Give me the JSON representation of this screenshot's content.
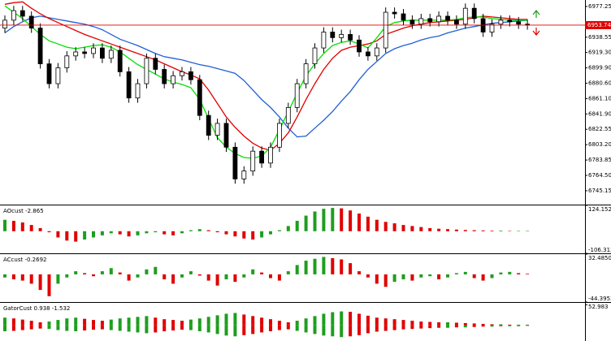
{
  "chart_data": [
    {
      "type": "candlestick",
      "open": [
        6950,
        6960,
        6972,
        6965,
        6950,
        6905,
        6880,
        6900,
        6915,
        6920,
        6918,
        6925,
        6912,
        6922,
        6895,
        6862,
        6880,
        6912,
        6898,
        6880,
        6890,
        6895,
        6885,
        6840,
        6815,
        6830,
        6800,
        6760,
        6770,
        6795,
        6780,
        6800,
        6830,
        6850,
        6880,
        6905,
        6925,
        6945,
        6938,
        6942,
        6935,
        6920,
        6915,
        6925,
        6970,
        6968,
        6960,
        6955,
        6962,
        6958,
        6965,
        6960,
        6955,
        6975,
        6962,
        6945,
        6955,
        6960,
        6958,
        6955
      ],
      "high": [
        6966,
        6978,
        6978,
        6971,
        6956,
        6911,
        6906,
        6921,
        6926,
        6926,
        6931,
        6931,
        6928,
        6928,
        6901,
        6886,
        6918,
        6918,
        6904,
        6896,
        6901,
        6901,
        6891,
        6846,
        6836,
        6836,
        6806,
        6776,
        6801,
        6801,
        6806,
        6836,
        6856,
        6886,
        6911,
        6931,
        6951,
        6951,
        6948,
        6948,
        6941,
        6926,
        6931,
        6976,
        6976,
        6974,
        6966,
        6968,
        6968,
        6971,
        6971,
        6966,
        6981,
        6981,
        6968,
        6961,
        6966,
        6966,
        6964,
        6961
      ],
      "low": [
        6944,
        6954,
        6959,
        6944,
        6899,
        6874,
        6874,
        6894,
        6909,
        6912,
        6912,
        6906,
        6906,
        6889,
        6856,
        6856,
        6874,
        6892,
        6874,
        6874,
        6884,
        6879,
        6834,
        6809,
        6809,
        6794,
        6754,
        6754,
        6764,
        6774,
        6774,
        6794,
        6824,
        6844,
        6874,
        6899,
        6919,
        6932,
        6932,
        6929,
        6914,
        6909,
        6909,
        6919,
        6962,
        6954,
        6949,
        6949,
        6952,
        6952,
        6954,
        6949,
        6949,
        6956,
        6939,
        6939,
        6949,
        6952,
        6949,
        6948
      ],
      "close": [
        6960,
        6972,
        6965,
        6950,
        6905,
        6880,
        6900,
        6915,
        6920,
        6918,
        6925,
        6912,
        6922,
        6895,
        6862,
        6880,
        6912,
        6898,
        6880,
        6890,
        6895,
        6885,
        6840,
        6815,
        6830,
        6800,
        6760,
        6770,
        6795,
        6780,
        6800,
        6830,
        6850,
        6880,
        6905,
        6925,
        6945,
        6938,
        6942,
        6935,
        6920,
        6915,
        6925,
        6970,
        6968,
        6960,
        6955,
        6962,
        6958,
        6965,
        6960,
        6955,
        6975,
        6962,
        6945,
        6955,
        6960,
        6958,
        6955,
        6954
      ],
      "lines": [
        {
          "color": "#1f5fd6",
          "values": [
            6944,
            6952,
            6958,
            6963,
            6965,
            6963,
            6961,
            6959,
            6957,
            6955,
            6952,
            6948,
            6942,
            6936,
            6932,
            6928,
            6923,
            6918,
            6914,
            6912,
            6910,
            6907,
            6904,
            6902,
            6899,
            6896,
            6893,
            6884,
            6872,
            6860,
            6850,
            6838,
            6824,
            6813,
            6814,
            6824,
            6834,
            6845,
            6858,
            6870,
            6885,
            6898,
            6908,
            6918,
            6924,
            6928,
            6931,
            6935,
            6938,
            6940,
            6944,
            6947,
            6950,
            6952,
            6954,
            6956,
            6957,
            6958,
            6959,
            6960
          ]
        },
        {
          "color": "#e00000",
          "values": [
            6980,
            6982,
            6983,
            6975,
            6968,
            6962,
            6957,
            6952,
            6947,
            6942,
            6938,
            6934,
            6930,
            6926,
            6922,
            6918,
            6914,
            6910,
            6905,
            6900,
            6895,
            6891,
            6886,
            6872,
            6855,
            6838,
            6825,
            6814,
            6805,
            6799,
            6796,
            6805,
            6818,
            6838,
            6860,
            6880,
            6898,
            6912,
            6922,
            6926,
            6928,
            6930,
            6934,
            6942,
            6946,
            6950,
            6953,
            6955,
            6957,
            6958,
            6959,
            6960,
            6961,
            6963,
            6965,
            6964,
            6963,
            6962,
            6961,
            6961
          ]
        },
        {
          "color": "#00e000",
          "values": [
            6978,
            6970,
            6962,
            6952,
            6942,
            6934,
            6930,
            6926,
            6924,
            6926,
            6928,
            6929,
            6926,
            6920,
            6912,
            6904,
            6898,
            6892,
            6886,
            6882,
            6879,
            6875,
            6860,
            6836,
            6812,
            6800,
            6792,
            6787,
            6786,
            6789,
            6800,
            6822,
            6845,
            6868,
            6890,
            6905,
            6918,
            6928,
            6932,
            6934,
            6930,
            6925,
            6938,
            6952,
            6957,
            6959,
            6960,
            6960,
            6960,
            6960,
            6960,
            6961,
            6963,
            6964,
            6964,
            6962,
            6961,
            6960,
            6960,
            6960
          ]
        }
      ],
      "current_price": 6953.74,
      "current_color": "#e00000",
      "ylim": [
        6727.7,
        6985.4
      ],
      "yticks": [
        6977.25,
        {
          "value": 6938.55,
          "label": "6938.55"
        },
        {
          "value": 6919.3,
          "label": "6919.30"
        },
        {
          "value": 6899.9,
          "label": "6899.90"
        },
        {
          "value": 6880.6,
          "label": "6880.60"
        },
        {
          "value": 6861.1,
          "label": "6861.10"
        },
        {
          "value": 6841.9,
          "label": "6841.90"
        },
        6822.55,
        {
          "value": 6803.2,
          "label": "6803.20"
        },
        6783.85,
        {
          "value": 6764.5,
          "label": "6764.50"
        },
        6745.15
      ]
    },
    {
      "type": "bar",
      "title": "AOcust -2.865",
      "up_color": "#1e9e1e",
      "down_color": "#e00000",
      "values": [
        55,
        50,
        42,
        30,
        15,
        -5,
        -30,
        -45,
        -50,
        -40,
        -30,
        -20,
        -10,
        -15,
        -25,
        -20,
        -10,
        -5,
        -15,
        -20,
        -10,
        5,
        10,
        5,
        -5,
        -15,
        -25,
        -35,
        -40,
        -30,
        -15,
        5,
        25,
        50,
        75,
        95,
        108,
        112,
        110,
        100,
        85,
        70,
        55,
        45,
        38,
        30,
        25,
        20,
        15,
        12,
        10,
        8,
        6,
        5,
        4,
        3,
        3,
        2,
        2,
        2
      ],
      "ylim": [
        -106.313,
        124.152
      ],
      "yticks": [
        124.152,
        -106.313
      ]
    },
    {
      "type": "bar",
      "title": "ACcust -0.2692",
      "up_color": "#1e9e1e",
      "down_color": "#e00000",
      "values": [
        -5,
        -8,
        -10,
        -15,
        -25,
        -35,
        -15,
        -5,
        5,
        2,
        -3,
        5,
        10,
        3,
        -10,
        -5,
        8,
        12,
        -8,
        -15,
        -5,
        5,
        -2,
        -10,
        -18,
        -8,
        -12,
        -5,
        8,
        3,
        -6,
        -10,
        5,
        15,
        22,
        25,
        28,
        26,
        24,
        18,
        5,
        -5,
        -15,
        -20,
        -12,
        -8,
        -10,
        -5,
        -3,
        -8,
        -5,
        2,
        4,
        -6,
        -10,
        -6,
        3,
        4,
        2,
        1
      ],
      "ylim": [
        -44.3953,
        32.485
      ],
      "yticks": [
        {
          "value": 32.485,
          "label": "32.4850"
        },
        -44.3953
      ]
    },
    {
      "type": "bar",
      "title": "GatorCust 0.938 -1.532",
      "up_color": "#1e9e1e",
      "down_color": "#e00000",
      "series": [
        {
          "values": [
            20,
            18,
            15,
            12,
            8,
            10,
            14,
            18,
            20,
            17,
            14,
            12,
            15,
            18,
            20,
            22,
            24,
            20,
            16,
            14,
            12,
            15,
            18,
            22,
            26,
            30,
            32,
            28,
            24,
            20,
            16,
            12,
            8,
            12,
            18,
            24,
            30,
            34,
            36,
            35,
            30,
            25,
            20,
            18,
            16,
            14,
            12,
            10,
            9,
            8,
            8,
            7,
            6,
            5,
            4,
            3,
            3,
            2,
            2,
            2
          ]
        },
        {
          "values": [
            -15,
            -14,
            -12,
            -10,
            -8,
            -9,
            -12,
            -14,
            -15,
            -13,
            -11,
            -10,
            -12,
            -14,
            -16,
            -18,
            -20,
            -18,
            -15,
            -13,
            -11,
            -12,
            -15,
            -18,
            -22,
            -26,
            -28,
            -25,
            -22,
            -18,
            -15,
            -12,
            -10,
            -14,
            -18,
            -22,
            -26,
            -28,
            -30,
            -28,
            -25,
            -20,
            -16,
            -14,
            -12,
            -10,
            -9,
            -8,
            -7,
            -6,
            -6,
            -5,
            -5,
            -4,
            -3,
            -3,
            -2,
            -2,
            -2,
            -1
          ]
        }
      ],
      "ylim": [
        -40,
        58
      ],
      "yticks": [
        52.983
      ]
    }
  ]
}
